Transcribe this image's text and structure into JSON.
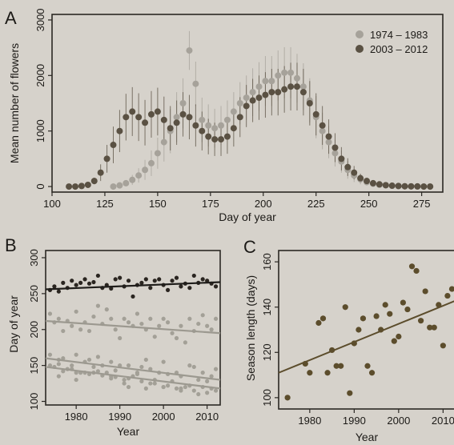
{
  "panels": {
    "a": "A",
    "b": "B",
    "c": "C"
  },
  "colors": {
    "paper": "#d6d2cb",
    "frame": "#2b2824",
    "early": "#a6a29a",
    "late": "#5a5143",
    "doy_dark": "#2a2520",
    "doy_light": "#a3a097",
    "olive": "#5c4d2c",
    "fit_dark": "#1f1d1a",
    "fit_light": "#9c9990"
  },
  "chart_data": [
    {
      "id": "a",
      "type": "line",
      "xlabel": "Day of year",
      "ylabel": "Mean number of flowers",
      "xlim": [
        100,
        285
      ],
      "ylim": [
        -100,
        3100
      ],
      "xticks": [
        100,
        125,
        150,
        175,
        200,
        225,
        250,
        275
      ],
      "xtick_labels": [
        "100",
        "125",
        "150",
        "175",
        "200",
        "225",
        "250",
        "275"
      ],
      "yticks": [
        0,
        1000,
        2000,
        3000
      ],
      "ytick_labels": [
        "0",
        "1000",
        "2000",
        "3000"
      ],
      "legend": {
        "position": "top-right"
      },
      "series": [
        {
          "name": "1974 – 1983",
          "color": "#a6a29a",
          "x": [
            129,
            132,
            135,
            138,
            141,
            144,
            147,
            150,
            153,
            156,
            159,
            162,
            165,
            168,
            171,
            174,
            177,
            180,
            183,
            186,
            189,
            192,
            195,
            198,
            201,
            204,
            207,
            210,
            213,
            216,
            219,
            222,
            225,
            228,
            231,
            234,
            237,
            240,
            243,
            246,
            249,
            252,
            255,
            258,
            261,
            264,
            267,
            270,
            273,
            276,
            279
          ],
          "y": [
            0,
            20,
            60,
            120,
            200,
            300,
            420,
            600,
            800,
            1000,
            1250,
            1500,
            2450,
            1850,
            1200,
            1100,
            1050,
            1100,
            1200,
            1350,
            1500,
            1600,
            1700,
            1800,
            1900,
            1900,
            2000,
            2050,
            2050,
            1950,
            1800,
            1550,
            1250,
            1000,
            800,
            600,
            450,
            300,
            200,
            130,
            80,
            50,
            30,
            20,
            15,
            10,
            5,
            3,
            2,
            0,
            0
          ],
          "err": [
            0,
            20,
            50,
            90,
            130,
            180,
            230,
            280,
            350,
            400,
            450,
            450,
            350,
            400,
            400,
            380,
            350,
            350,
            350,
            350,
            380,
            400,
            430,
            440,
            450,
            450,
            450,
            460,
            460,
            440,
            420,
            400,
            380,
            330,
            290,
            240,
            200,
            160,
            120,
            90,
            60,
            40,
            25,
            15,
            10,
            8,
            5,
            3,
            2,
            0,
            0
          ]
        },
        {
          "name": "2003 – 2012",
          "color": "#5a5143",
          "x": [
            108,
            111,
            114,
            117,
            120,
            123,
            126,
            129,
            132,
            135,
            138,
            141,
            144,
            147,
            150,
            153,
            156,
            159,
            162,
            165,
            168,
            171,
            174,
            177,
            180,
            183,
            186,
            189,
            192,
            195,
            198,
            201,
            204,
            207,
            210,
            213,
            216,
            219,
            222,
            225,
            228,
            231,
            234,
            237,
            240,
            243,
            246,
            249,
            252,
            255,
            258,
            261,
            264,
            267,
            270,
            273,
            276,
            279
          ],
          "y": [
            0,
            0,
            10,
            30,
            100,
            250,
            500,
            750,
            1000,
            1250,
            1350,
            1250,
            1150,
            1300,
            1350,
            1200,
            1050,
            1150,
            1300,
            1250,
            1100,
            1000,
            900,
            850,
            850,
            900,
            1050,
            1250,
            1450,
            1550,
            1600,
            1650,
            1700,
            1700,
            1750,
            1800,
            1800,
            1700,
            1500,
            1300,
            1100,
            900,
            700,
            500,
            350,
            250,
            150,
            100,
            60,
            40,
            25,
            15,
            10,
            5,
            3,
            2,
            0,
            0
          ],
          "err": [
            0,
            0,
            10,
            20,
            60,
            150,
            250,
            330,
            380,
            420,
            440,
            430,
            410,
            420,
            430,
            420,
            400,
            400,
            400,
            400,
            380,
            350,
            320,
            300,
            300,
            310,
            330,
            360,
            380,
            390,
            400,
            410,
            420,
            420,
            420,
            430,
            430,
            420,
            400,
            380,
            350,
            310,
            260,
            210,
            160,
            120,
            80,
            60,
            40,
            25,
            15,
            10,
            5,
            3,
            2,
            0,
            0,
            0
          ]
        }
      ]
    },
    {
      "id": "b",
      "type": "scatter",
      "xlabel": "Year",
      "ylabel": "Day of year",
      "xlim": [
        1973,
        2013
      ],
      "ylim": [
        95,
        310
      ],
      "xticks": [
        1980,
        1990,
        2000,
        2010
      ],
      "xtick_labels": [
        "1980",
        "1990",
        "2000",
        "2010"
      ],
      "yticks": [
        100,
        150,
        200,
        250,
        300
      ],
      "ytick_labels": [
        "100",
        "150",
        "200",
        "250",
        "300"
      ],
      "series": [
        {
          "color": "#2a2520",
          "x": [
            1974,
            1975,
            1976,
            1977,
            1978,
            1979,
            1980,
            1981,
            1982,
            1983,
            1984,
            1985,
            1986,
            1987,
            1988,
            1989,
            1990,
            1991,
            1992,
            1993,
            1994,
            1995,
            1996,
            1997,
            1998,
            1999,
            2000,
            2001,
            2002,
            2003,
            2004,
            2005,
            2006,
            2007,
            2008,
            2009,
            2010,
            2011,
            2012
          ],
          "y": [
            255,
            260,
            253,
            265,
            258,
            268,
            262,
            265,
            270,
            264,
            266,
            275,
            258,
            262,
            257,
            270,
            272,
            260,
            268,
            246,
            262,
            265,
            270,
            258,
            268,
            270,
            262,
            255,
            268,
            272,
            260,
            264,
            258,
            275,
            265,
            270,
            268,
            264,
            260
          ],
          "fit": [
            256,
            266
          ]
        },
        {
          "color": "#a3a097",
          "x": [
            1974,
            1975,
            1976,
            1977,
            1978,
            1979,
            1980,
            1981,
            1982,
            1983,
            1984,
            1985,
            1986,
            1987,
            1988,
            1989,
            1990,
            1991,
            1992,
            1993,
            1994,
            1995,
            1996,
            1997,
            1998,
            1999,
            2000,
            2001,
            2002,
            2003,
            2004,
            2005,
            2006,
            2007,
            2008,
            2009,
            2010,
            2011,
            2012
          ],
          "y": [
            222,
            210,
            215,
            198,
            212,
            205,
            225,
            200,
            210,
            198,
            218,
            233,
            208,
            228,
            215,
            200,
            188,
            215,
            210,
            205,
            222,
            208,
            200,
            215,
            190,
            205,
            215,
            210,
            195,
            188,
            205,
            182,
            215,
            198,
            208,
            220,
            205,
            200,
            215
          ],
          "fit": [
            212,
            195
          ]
        },
        {
          "color": "#a3a097",
          "x": [
            1974,
            1975,
            1976,
            1977,
            1978,
            1979,
            1980,
            1981,
            1982,
            1983,
            1984,
            1985,
            1986,
            1987,
            1988,
            1989,
            1990,
            1991,
            1992,
            1993,
            1994,
            1995,
            1996,
            1997,
            1998,
            1999,
            2000,
            2001,
            2002,
            2003,
            2004,
            2005,
            2006,
            2007,
            2008,
            2009,
            2010,
            2011,
            2012,
            1976,
            1980,
            1984,
            1988,
            1992,
            1996,
            2000,
            2004,
            2008,
            2011
          ],
          "y": [
            165,
            148,
            158,
            160,
            145,
            150,
            165,
            140,
            155,
            158,
            148,
            162,
            150,
            140,
            155,
            143,
            150,
            125,
            150,
            135,
            140,
            148,
            158,
            145,
            130,
            140,
            155,
            138,
            128,
            140,
            135,
            120,
            150,
            148,
            130,
            140,
            128,
            135,
            145,
            135,
            130,
            140,
            132,
            120,
            118,
            120,
            115,
            110,
            118
          ],
          "fit": [
            160,
            130
          ]
        },
        {
          "color": "#a3a097",
          "x": [
            1974,
            1977,
            1980,
            1983,
            1986,
            1989,
            1992,
            1995,
            1998,
            2001,
            2004,
            2007,
            2010,
            1976,
            1979,
            1982,
            1985,
            1988,
            1991,
            1994,
            1997,
            2000,
            2003,
            2006,
            2009,
            2012
          ],
          "y": [
            150,
            142,
            140,
            138,
            136,
            134,
            132,
            128,
            125,
            122,
            118,
            115,
            112,
            152,
            145,
            140,
            142,
            135,
            130,
            138,
            125,
            120,
            118,
            122,
            120,
            115
          ],
          "fit": [
            148,
            118
          ]
        }
      ]
    },
    {
      "id": "c",
      "type": "scatter",
      "xlabel": "Year",
      "ylabel": "Season length (days)",
      "xlim": [
        1973,
        2013
      ],
      "ylim": [
        95,
        165
      ],
      "xticks": [
        1980,
        1990,
        2000,
        2010
      ],
      "xtick_labels": [
        "1980",
        "1990",
        "2000",
        "2010"
      ],
      "yticks": [
        100,
        120,
        140,
        160
      ],
      "ytick_labels": [
        "100",
        "120",
        "140",
        "160"
      ],
      "series": [
        {
          "color": "#5c4d2c",
          "x": [
            1975,
            1979,
            1980,
            1982,
            1983,
            1984,
            1985,
            1986,
            1987,
            1988,
            1989,
            1990,
            1991,
            1992,
            1993,
            1994,
            1995,
            1996,
            1997,
            1998,
            1999,
            2000,
            2001,
            2002,
            2003,
            2004,
            2005,
            2006,
            2007,
            2008,
            2009,
            2010,
            2011,
            2012
          ],
          "y": [
            100,
            115,
            111,
            133,
            135,
            111,
            121,
            114,
            114,
            140,
            102,
            124,
            130,
            135,
            114,
            111,
            136,
            130,
            141,
            137,
            125,
            127,
            142,
            139,
            158,
            156,
            134,
            147,
            131,
            131,
            141,
            123,
            145,
            148
          ],
          "fit": [
            111,
            143
          ]
        }
      ]
    }
  ]
}
